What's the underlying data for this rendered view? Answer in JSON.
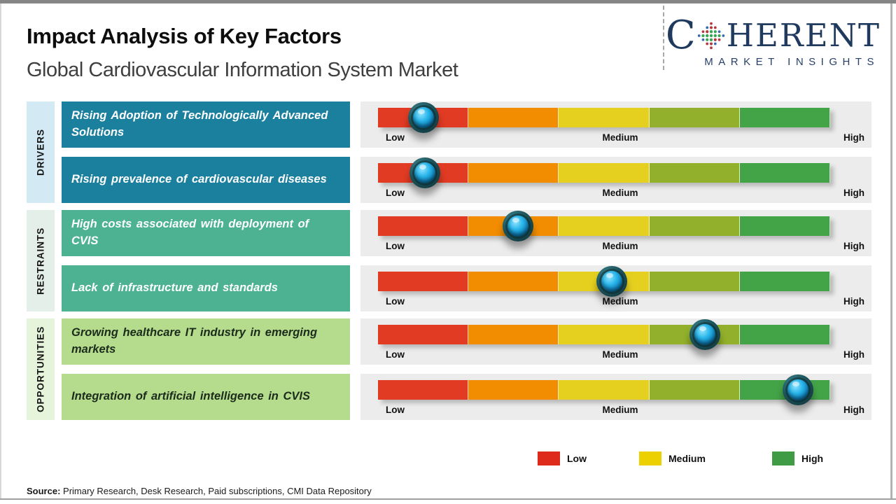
{
  "header": {
    "title": "Impact Analysis of Key Factors",
    "subtitle": "Global Cardiovascular Information System Market"
  },
  "logo": {
    "brand_c": "C",
    "brand_rest": "HERENT",
    "tagline": "MARKET INSIGHTS"
  },
  "sections": [
    {
      "label": "DRIVERS"
    },
    {
      "label": "RESTRAINTS"
    },
    {
      "label": "OPPORTUNITIES"
    }
  ],
  "rows": [
    {
      "category": "DRIVERS",
      "text": "Rising Adoption of Technologically Advanced Solutions",
      "impact_rating": "Low",
      "marker_pct": 10.1
    },
    {
      "category": "DRIVERS",
      "text": "Rising prevalence of cardiovascular diseases",
      "impact_rating": "Low",
      "marker_pct": 10.4
    },
    {
      "category": "RESTRAINTS",
      "text": "High costs associated with deployment of CVIS",
      "impact_rating": "Low-Medium",
      "marker_pct": 31.0
    },
    {
      "category": "RESTRAINTS",
      "text": "Lack of infrastructure and standards",
      "impact_rating": "Medium",
      "marker_pct": 51.7
    },
    {
      "category": "OPPORTUNITIES",
      "text": "Growing healthcare IT industry in emerging markets",
      "impact_rating": "Medium-High",
      "marker_pct": 72.3
    },
    {
      "category": "OPPORTUNITIES",
      "text": "Integration of artificial intelligence in CVIS",
      "impact_rating": "High",
      "marker_pct": 92.9
    }
  ],
  "scale": {
    "low": "Low",
    "medium": "Medium",
    "high": "High"
  },
  "legend": [
    {
      "label": "Low",
      "color": "#dd2a1b"
    },
    {
      "label": "Medium",
      "color": "#ecd000"
    },
    {
      "label": "High",
      "color": "#3f9c44"
    }
  ],
  "source": {
    "label": "Source:",
    "text": " Primary Research, Desk Research, Paid subscriptions, CMI Data Repository"
  },
  "colors": {
    "segments": [
      "#e23b24",
      "#f28d01",
      "#e6d01f",
      "#93b02c",
      "#43a347"
    ],
    "box_drivers": "#1b7f9e",
    "box_restraints": "#4cb291",
    "box_opportunities": "#b4dc8c",
    "strip_drivers": "#d3eaf5",
    "strip_restraints": "#e4efe9",
    "strip_opportunities": "#e6f4dc",
    "factor_text_light": "#ffffff",
    "factor_text_dark": "#1c2b1c",
    "logo_navy": "#203a5f"
  },
  "chart_data": {
    "type": "bar",
    "title": "Impact Analysis of Key Factors",
    "subtitle": "Global Cardiovascular Information System Market",
    "scale_labels": [
      "Low",
      "Medium",
      "High"
    ],
    "groups": [
      "DRIVERS",
      "DRIVERS",
      "RESTRAINTS",
      "RESTRAINTS",
      "OPPORTUNITIES",
      "OPPORTUNITIES"
    ],
    "categories": [
      "Rising Adoption of Technologically Advanced Solutions",
      "Rising prevalence of cardiovascular diseases",
      "High costs associated with deployment of CVIS",
      "Lack of infrastructure and standards",
      "Growing healthcare IT industry in emerging markets",
      "Integration of artificial intelligence in CVIS"
    ],
    "impact_position_pct": [
      10.1,
      10.4,
      31.0,
      51.7,
      72.3,
      92.9
    ],
    "impact_rating": [
      "Low",
      "Low",
      "Low-Medium",
      "Medium",
      "Medium-High",
      "High"
    ],
    "xlim_labels": [
      "Low",
      "High"
    ],
    "legend_position": "bottom-right",
    "grid": false
  }
}
